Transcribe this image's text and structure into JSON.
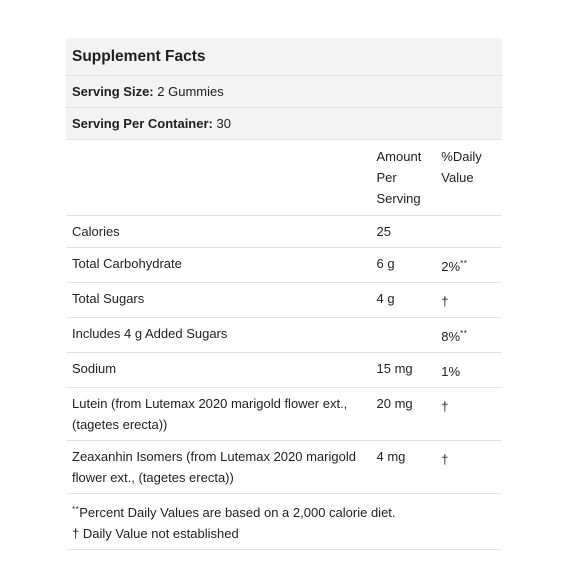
{
  "title": "Supplement Facts",
  "serving_size": {
    "label": "Serving Size:",
    "value": "2 Gummies"
  },
  "servings_per_container": {
    "label": "Serving Per Container:",
    "value": "30"
  },
  "columns": {
    "amount": "Amount Per Serving",
    "daily_value": "%Daily Value"
  },
  "rows": [
    {
      "name": "Calories",
      "amount": "25",
      "dv": "",
      "dv_mark": ""
    },
    {
      "name": "Total Carbohydrate",
      "amount": "6 g",
      "dv": "2%",
      "dv_mark": "**"
    },
    {
      "name": "Total Sugars",
      "amount": "4 g",
      "dv": "†",
      "dv_mark": ""
    },
    {
      "name": "Includes 4 g Added Sugars",
      "amount": "",
      "dv": "8%",
      "dv_mark": "**"
    },
    {
      "name": "Sodium",
      "amount": "15 mg",
      "dv": "1%",
      "dv_mark": ""
    },
    {
      "name": "Lutein (from Lutemax 2020 marigold flower ext., (tagetes erecta))",
      "amount": "20 mg",
      "dv": "†",
      "dv_mark": ""
    },
    {
      "name": "Zeaxanhin Isomers (from Lutemax 2020 marigold flower ext., (tagetes erecta))",
      "amount": "4 mg",
      "dv": "†",
      "dv_mark": ""
    }
  ],
  "footnotes": {
    "percent_dv_mark": "**",
    "percent_dv": "Percent Daily Values are based on a 2,000 calorie diet.",
    "not_established": "† Daily Value not established"
  },
  "colors": {
    "shade": "#f3f3f3",
    "rule": "#e2e2e2",
    "text": "#1f1f1f"
  }
}
